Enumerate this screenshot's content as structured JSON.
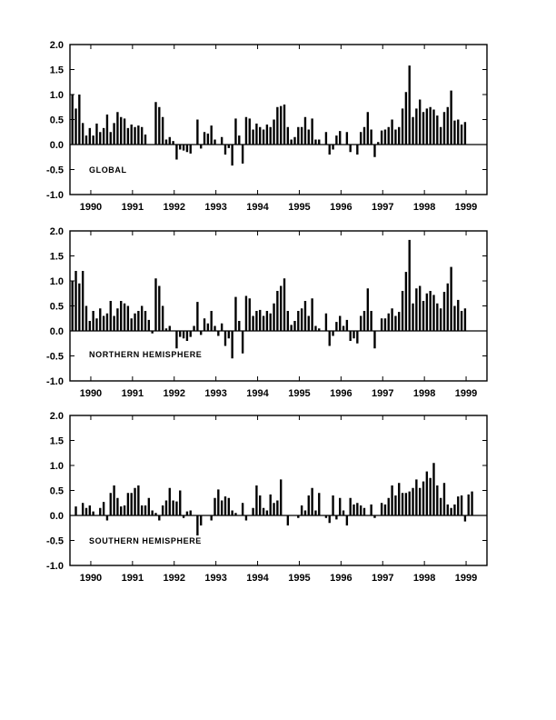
{
  "chart_data": [
    {
      "type": "bar",
      "title": "GLOBAL",
      "ylim": [
        -1.0,
        2.0
      ],
      "yticks": [
        "2.0",
        "1.5",
        "1.0",
        "0.5",
        "0.0",
        "-0.5",
        "-1.0"
      ],
      "xticks": [
        "1990",
        "1991",
        "1992",
        "1993",
        "1994",
        "1995",
        "1996",
        "1997",
        "1998",
        "1999"
      ],
      "x_start": 1989.5,
      "x_end": 1999.5,
      "values": [
        1.0,
        0.72,
        1.0,
        0.43,
        0.18,
        0.33,
        0.18,
        0.42,
        0.25,
        0.33,
        0.6,
        0.25,
        0.43,
        0.65,
        0.55,
        0.52,
        0.33,
        0.4,
        0.35,
        0.38,
        0.35,
        0.2,
        0.0,
        0.0,
        0.85,
        0.75,
        0.55,
        0.1,
        0.15,
        0.07,
        -0.3,
        -0.1,
        -0.12,
        -0.15,
        -0.18,
        0.0,
        0.5,
        -0.08,
        0.25,
        0.22,
        0.38,
        0.1,
        0.0,
        0.15,
        -0.2,
        -0.07,
        -0.42,
        0.52,
        0.18,
        -0.38,
        0.55,
        0.52,
        0.3,
        0.42,
        0.35,
        0.3,
        0.4,
        0.35,
        0.5,
        0.75,
        0.77,
        0.8,
        0.35,
        0.1,
        0.15,
        0.35,
        0.35,
        0.55,
        0.3,
        0.52,
        0.1,
        0.1,
        0.0,
        0.25,
        -0.2,
        -0.1,
        0.18,
        0.27,
        0.0,
        0.25,
        -0.15,
        0.0,
        -0.2,
        0.25,
        0.35,
        0.65,
        0.3,
        -0.25,
        0.05,
        0.28,
        0.3,
        0.35,
        0.5,
        0.3,
        0.35,
        0.72,
        1.05,
        1.58,
        0.55,
        0.72,
        0.9,
        0.65,
        0.72,
        0.75,
        0.7,
        0.58,
        0.35,
        0.65,
        0.75,
        1.08,
        0.48,
        0.5,
        0.4,
        0.45
      ]
    },
    {
      "type": "bar",
      "title": "NORTHERN HEMISPHERE",
      "ylim": [
        -1.0,
        2.0
      ],
      "yticks": [
        "2.0",
        "1.5",
        "1.0",
        "0.5",
        "0.0",
        "-0.5",
        "-1.0"
      ],
      "xticks": [
        "1990",
        "1991",
        "1992",
        "1993",
        "1994",
        "1995",
        "1996",
        "1997",
        "1998",
        "1999"
      ],
      "x_start": 1989.5,
      "x_end": 1999.5,
      "values": [
        1.0,
        1.2,
        0.95,
        1.2,
        0.5,
        0.2,
        0.4,
        0.25,
        0.45,
        0.3,
        0.35,
        0.6,
        0.3,
        0.45,
        0.6,
        0.55,
        0.5,
        0.25,
        0.35,
        0.4,
        0.5,
        0.4,
        0.22,
        -0.05,
        1.05,
        0.9,
        0.5,
        0.05,
        0.1,
        0.0,
        -0.35,
        -0.12,
        -0.15,
        -0.2,
        -0.12,
        0.1,
        0.58,
        -0.08,
        0.25,
        0.15,
        0.4,
        0.1,
        -0.1,
        0.15,
        -0.3,
        -0.15,
        -0.55,
        0.68,
        0.2,
        -0.45,
        0.7,
        0.65,
        0.3,
        0.4,
        0.42,
        0.3,
        0.4,
        0.35,
        0.55,
        0.8,
        0.9,
        1.05,
        0.4,
        0.12,
        0.2,
        0.4,
        0.45,
        0.6,
        0.3,
        0.65,
        0.1,
        0.05,
        0.0,
        0.35,
        -0.3,
        -0.1,
        0.18,
        0.3,
        0.1,
        0.22,
        -0.2,
        -0.15,
        -0.25,
        0.3,
        0.4,
        0.85,
        0.4,
        -0.35,
        0.0,
        0.25,
        0.25,
        0.35,
        0.45,
        0.3,
        0.38,
        0.8,
        1.18,
        1.82,
        0.55,
        0.85,
        0.9,
        0.6,
        0.75,
        0.8,
        0.72,
        0.55,
        0.45,
        0.78,
        0.95,
        1.28,
        0.5,
        0.62,
        0.4,
        0.45
      ]
    },
    {
      "type": "bar",
      "title": "SOUTHERN HEMISPHERE",
      "ylim": [
        -1.0,
        2.0
      ],
      "yticks": [
        "2.0",
        "1.5",
        "1.0",
        "0.5",
        "0.0",
        "-0.5",
        "-1.0"
      ],
      "xticks": [
        "1990",
        "1991",
        "1992",
        "1993",
        "1994",
        "1995",
        "1996",
        "1997",
        "1998",
        "1999"
      ],
      "x_start": 1989.5,
      "x_end": 1999.5,
      "values": [
        0.0,
        0.18,
        0.0,
        0.25,
        0.15,
        0.2,
        0.08,
        0.0,
        0.15,
        0.27,
        -0.1,
        0.45,
        0.6,
        0.35,
        0.18,
        0.2,
        0.45,
        0.45,
        0.55,
        0.6,
        0.2,
        0.2,
        0.35,
        0.1,
        0.05,
        -0.1,
        0.2,
        0.3,
        0.55,
        0.3,
        0.28,
        0.5,
        -0.05,
        0.08,
        0.1,
        0.0,
        -0.4,
        -0.2,
        0.0,
        0.0,
        -0.1,
        0.35,
        0.52,
        0.3,
        0.38,
        0.35,
        0.1,
        0.05,
        0.0,
        0.25,
        -0.1,
        0.0,
        0.15,
        0.6,
        0.4,
        0.15,
        0.1,
        0.42,
        0.25,
        0.3,
        0.72,
        0.0,
        -0.2,
        0.0,
        0.0,
        -0.05,
        0.2,
        0.1,
        0.4,
        0.55,
        0.1,
        0.45,
        0.0,
        -0.05,
        -0.15,
        0.4,
        -0.08,
        0.35,
        0.1,
        -0.2,
        0.35,
        0.22,
        0.25,
        0.2,
        0.15,
        0.0,
        0.22,
        -0.05,
        0.0,
        0.25,
        0.22,
        0.35,
        0.6,
        0.4,
        0.65,
        0.45,
        0.45,
        0.48,
        0.55,
        0.72,
        0.55,
        0.68,
        0.88,
        0.75,
        1.05,
        0.6,
        0.35,
        0.65,
        0.22,
        0.15,
        0.22,
        0.38,
        0.4,
        -0.12,
        0.42,
        0.48
      ]
    }
  ]
}
